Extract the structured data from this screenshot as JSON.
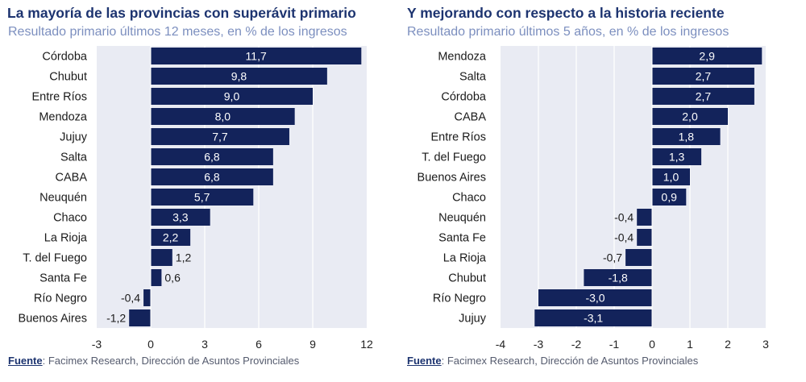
{
  "chart_data": [
    {
      "type": "bar",
      "orientation": "horizontal",
      "title": "La mayoría de las provincias con superávit primario",
      "subtitle": "Resultado primario últimos 12 meses, en % de los ingresos",
      "categories": [
        "Córdoba",
        "Chubut",
        "Entre Ríos",
        "Mendoza",
        "Jujuy",
        "Salta",
        "CABA",
        "Neuquén",
        "Chaco",
        "La Rioja",
        "T. del Fuego",
        "Santa Fe",
        "Río Negro",
        "Buenos Aires"
      ],
      "values": [
        11.7,
        9.8,
        9.0,
        8.0,
        7.7,
        6.8,
        6.8,
        5.7,
        3.3,
        2.2,
        1.2,
        0.6,
        -0.4,
        -1.2
      ],
      "data_labels": [
        "11,7",
        "9,8",
        "9,0",
        "8,0",
        "7,7",
        "6,8",
        "6,8",
        "5,7",
        "3,3",
        "2,2",
        "1,2",
        "0,6",
        "-0,4",
        "-1,2"
      ],
      "xlim": [
        -3,
        12
      ],
      "xticks": [
        -3,
        0,
        3,
        6,
        9,
        12
      ],
      "xtick_labels": [
        "-3",
        "0",
        "3",
        "6",
        "9",
        "12"
      ],
      "grid": true,
      "source_label": "Fuente",
      "source_text": ": Facimex Research, Dirección de Asuntos Provinciales"
    },
    {
      "type": "bar",
      "orientation": "horizontal",
      "title": "Y mejorando con respecto a la historia reciente",
      "subtitle": "Resultado primario últimos 5 años, en % de los ingresos",
      "categories": [
        "Mendoza",
        "Salta",
        "Córdoba",
        "CABA",
        "Entre Ríos",
        "T. del Fuego",
        "Buenos Aires",
        "Chaco",
        "Neuquén",
        "Santa Fe",
        "La Rioja",
        "Chubut",
        "Río Negro",
        "Jujuy"
      ],
      "values": [
        2.9,
        2.7,
        2.7,
        2.0,
        1.8,
        1.3,
        1.0,
        0.9,
        -0.4,
        -0.4,
        -0.7,
        -1.8,
        -3.0,
        -3.1
      ],
      "data_labels": [
        "2,9",
        "2,7",
        "2,7",
        "2,0",
        "1,8",
        "1,3",
        "1,0",
        "0,9",
        "-0,4",
        "-0,4",
        "-0,7",
        "-1,8",
        "-3,0",
        "-3,1"
      ],
      "xlim": [
        -4,
        3
      ],
      "xticks": [
        -4,
        -3,
        -2,
        -1,
        0,
        1,
        2,
        3
      ],
      "xtick_labels": [
        "-4",
        "-3",
        "-2",
        "-1",
        "0",
        "1",
        "2",
        "3"
      ],
      "grid": true,
      "source_label": "Fuente",
      "source_text": ": Facimex Research, Dirección de Asuntos Provinciales"
    }
  ],
  "colors": {
    "bar": "#13235b",
    "plot_bg": "#e9ebf3",
    "gridline": "#ffffff",
    "title": "#1d3470",
    "subtitle": "#7c8fbf"
  }
}
